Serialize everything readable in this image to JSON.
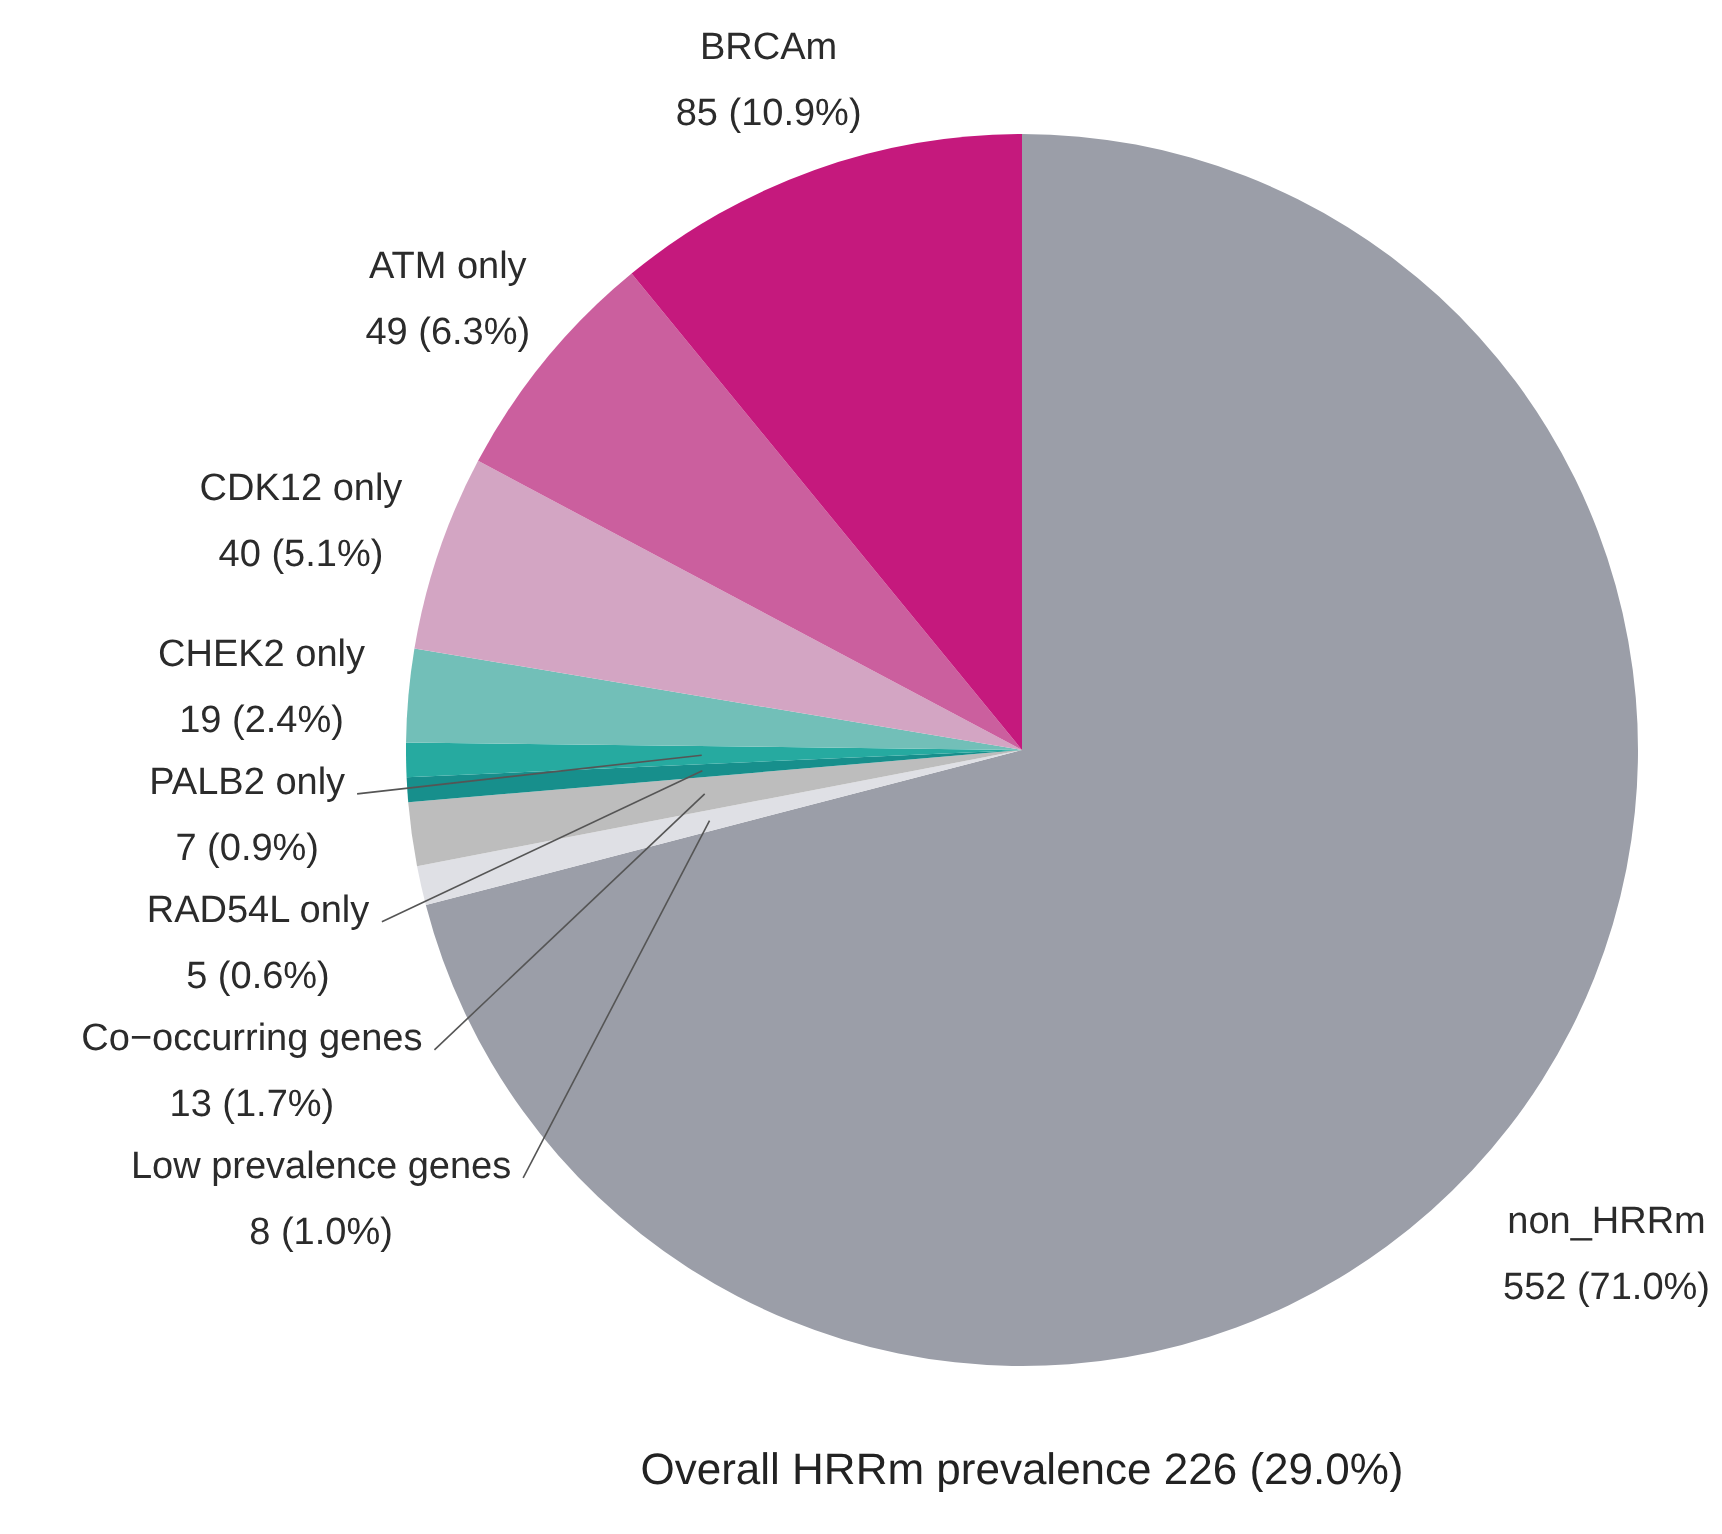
{
  "chart_data": {
    "type": "pie",
    "title": "Overall HRRm prevalence 226 (29.0%)",
    "categories": [
      "non_HRRm",
      "Low prevalence genes",
      "Co−occurring genes",
      "RAD54L only",
      "PALB2 only",
      "CHEK2 only",
      "CDK12 only",
      "ATM only",
      "BRCAm"
    ],
    "values": [
      552,
      8,
      13,
      5,
      7,
      19,
      40,
      49,
      85
    ],
    "colors": [
      "#9b9ea8",
      "#dfe0e5",
      "#bdbdbd",
      "#178f8c",
      "#26aaa0",
      "#72bfb8",
      "#d3a5c3",
      "#cb5f9e",
      "#c5197d"
    ],
    "value_labels": [
      "552 (71.0%)",
      "8 (1.0%)",
      "13 (1.7%)",
      "5 (0.6%)",
      "7 (0.9%)",
      "19 (2.4%)",
      "40 (5.1%)",
      "49 (6.3%)",
      "85 (10.9%)"
    ]
  }
}
